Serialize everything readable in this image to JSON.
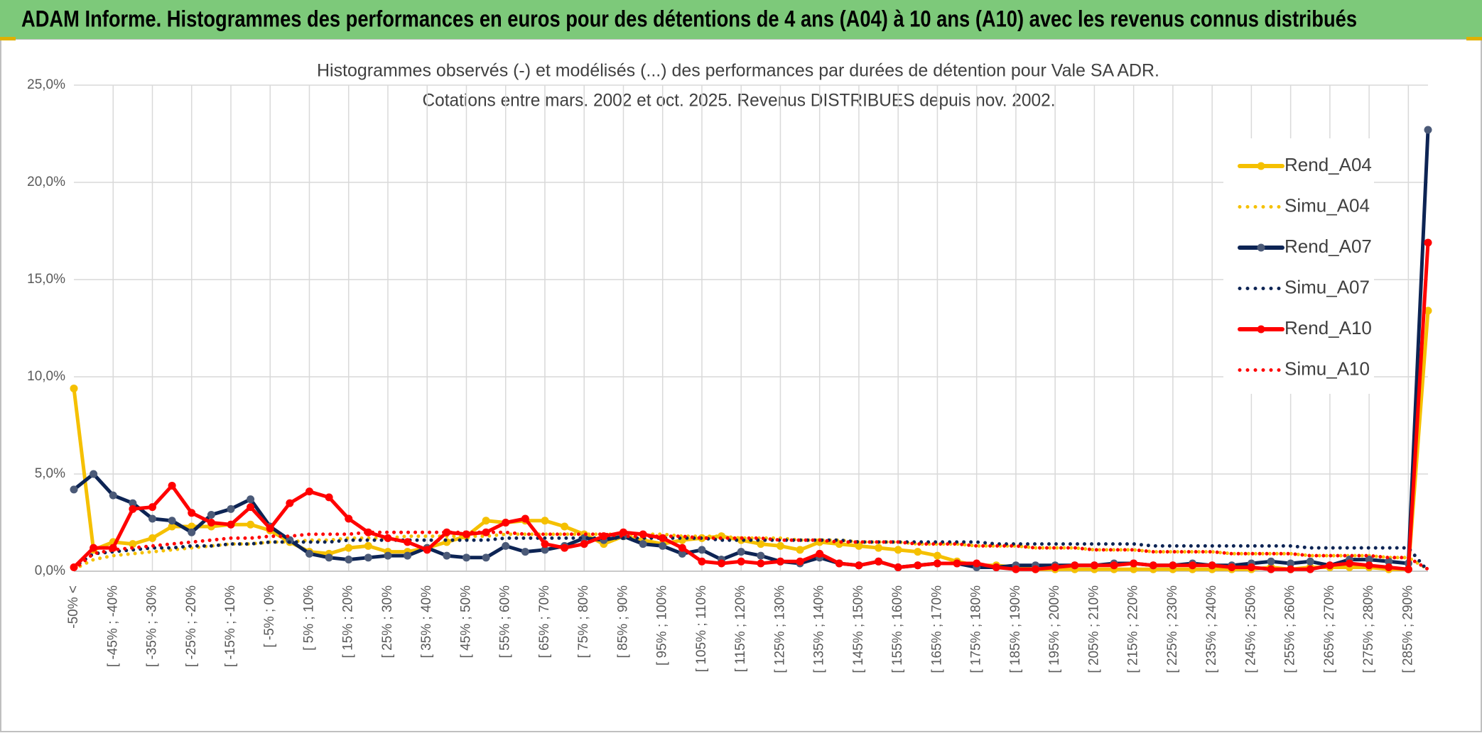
{
  "header": {
    "title": "ADAM Informe. Histogrammes des performances en euros pour des détentions de 4 ans (A04) à 10 ans (A10) avec les revenus connus distribués"
  },
  "chart_data": {
    "type": "line",
    "title": "Histogrammes observés (-) et modélisés (...) des performances par durées de détention pour Vale SA ADR.",
    "subtitle": "Cotations entre mars. 2002 et oct. 2025. Revenus DISTRIBUES depuis nov. 2002.",
    "categories": [
      "-50% <",
      null,
      "[ -45% ; -40%",
      null,
      "[ -35% ; -30%",
      null,
      "[ -25% ; -20%",
      null,
      "[ -15% ; -10%",
      null,
      "[ -5% ; 0%",
      null,
      "[ 5% ; 10%",
      null,
      "[ 15% ; 20%",
      null,
      "[ 25% ; 30%",
      null,
      "[ 35% ; 40%",
      null,
      "[ 45% ; 50%",
      null,
      "[ 55% ; 60%",
      null,
      "[ 65% ; 70%",
      null,
      "[ 75% ; 80%",
      null,
      "[ 85% ; 90%",
      null,
      "[ 95% ; 100%",
      null,
      "[ 105% ; 110%",
      null,
      "[ 115% ; 120%",
      null,
      "[ 125% ; 130%",
      null,
      "[ 135% ; 140%",
      null,
      "[ 145% ; 150%",
      null,
      "[ 155% ; 160%",
      null,
      "[ 165% ; 170%",
      null,
      "[ 175% ; 180%",
      null,
      "[ 185% ; 190%",
      null,
      "[ 195% ; 200%",
      null,
      "[ 205% ; 210%",
      null,
      "[ 215% ; 220%",
      null,
      "[ 225% ; 230%",
      null,
      "[ 235% ; 240%",
      null,
      "[ 245% ; 250%",
      null,
      "[ 255% ; 260%",
      null,
      "[ 265% ; 270%",
      null,
      "[ 275% ; 280%",
      null,
      "[ 285% ; 290%",
      null
    ],
    "series": [
      {
        "name": "Rend_A04",
        "color": "#f5c000",
        "style": "solid",
        "values": [
          9.4,
          1.1,
          1.5,
          1.4,
          1.7,
          2.3,
          2.3,
          2.3,
          2.4,
          2.4,
          2.1,
          1.5,
          1.0,
          0.9,
          1.2,
          1.3,
          1.0,
          1.0,
          1.2,
          1.5,
          1.8,
          2.6,
          2.5,
          2.6,
          2.6,
          2.3,
          1.9,
          1.4,
          1.8,
          1.6,
          1.4,
          1.6,
          1.7,
          1.8,
          1.6,
          1.4,
          1.3,
          1.1,
          1.5,
          1.4,
          1.3,
          1.2,
          1.1,
          1.0,
          0.8,
          0.5,
          0.3,
          0.3,
          0.2,
          0.1,
          0.1,
          0.1,
          0.1,
          0.1,
          0.1,
          0.1,
          0.1,
          0.1,
          0.1,
          0.1,
          0.1,
          0.2,
          0.1,
          0.2,
          0.2,
          0.2,
          0.2,
          0.1,
          0.1,
          13.4
        ]
      },
      {
        "name": "Simu_A04",
        "color": "#f5c000",
        "style": "dotted",
        "values": [
          0.1,
          0.6,
          0.8,
          0.9,
          1.0,
          1.1,
          1.2,
          1.3,
          1.4,
          1.4,
          1.5,
          1.5,
          1.6,
          1.6,
          1.7,
          1.7,
          1.7,
          1.8,
          1.8,
          1.8,
          1.8,
          1.8,
          1.9,
          1.9,
          1.9,
          1.9,
          1.9,
          1.9,
          1.9,
          1.9,
          1.9,
          1.8,
          1.8,
          1.8,
          1.7,
          1.7,
          1.7,
          1.6,
          1.6,
          1.6,
          1.5,
          1.5,
          1.5,
          1.4,
          1.4,
          1.4,
          1.3,
          1.3,
          1.3,
          1.2,
          1.2,
          1.2,
          1.1,
          1.1,
          1.1,
          1.0,
          1.0,
          1.0,
          1.0,
          0.9,
          0.9,
          0.9,
          0.9,
          0.8,
          0.8,
          0.8,
          0.8,
          0.7,
          0.7,
          0.1
        ]
      },
      {
        "name": "Rend_A07",
        "color": "#0d2454",
        "marker_color": "#4b5a78",
        "style": "solid",
        "values": [
          4.2,
          5.0,
          3.9,
          3.5,
          2.7,
          2.6,
          2.0,
          2.9,
          3.2,
          3.7,
          2.3,
          1.6,
          0.9,
          0.7,
          0.6,
          0.7,
          0.8,
          0.8,
          1.2,
          0.8,
          0.7,
          0.7,
          1.3,
          1.0,
          1.1,
          1.3,
          1.7,
          1.6,
          1.8,
          1.4,
          1.3,
          0.9,
          1.1,
          0.6,
          1.0,
          0.8,
          0.5,
          0.4,
          0.7,
          0.4,
          0.3,
          0.5,
          0.2,
          0.3,
          0.4,
          0.4,
          0.2,
          0.2,
          0.3,
          0.3,
          0.3,
          0.3,
          0.3,
          0.4,
          0.4,
          0.3,
          0.3,
          0.4,
          0.3,
          0.3,
          0.4,
          0.5,
          0.4,
          0.5,
          0.3,
          0.6,
          0.6,
          0.5,
          0.4,
          22.7
        ]
      },
      {
        "name": "Simu_A07",
        "color": "#0d2454",
        "style": "dotted",
        "values": [
          0.2,
          0.9,
          1.0,
          1.1,
          1.2,
          1.2,
          1.3,
          1.3,
          1.4,
          1.4,
          1.5,
          1.5,
          1.5,
          1.5,
          1.6,
          1.6,
          1.6,
          1.6,
          1.6,
          1.6,
          1.6,
          1.6,
          1.7,
          1.7,
          1.7,
          1.7,
          1.7,
          1.7,
          1.7,
          1.7,
          1.7,
          1.7,
          1.7,
          1.6,
          1.6,
          1.6,
          1.6,
          1.6,
          1.6,
          1.6,
          1.5,
          1.5,
          1.5,
          1.5,
          1.5,
          1.5,
          1.5,
          1.4,
          1.4,
          1.4,
          1.4,
          1.4,
          1.4,
          1.4,
          1.4,
          1.3,
          1.3,
          1.3,
          1.3,
          1.3,
          1.3,
          1.3,
          1.3,
          1.2,
          1.2,
          1.2,
          1.2,
          1.2,
          1.2,
          0.0
        ]
      },
      {
        "name": "Rend_A10",
        "color": "#ff0000",
        "style": "solid",
        "values": [
          0.2,
          1.2,
          1.2,
          3.2,
          3.3,
          4.4,
          3.0,
          2.5,
          2.4,
          3.3,
          2.2,
          3.5,
          4.1,
          3.8,
          2.7,
          2.0,
          1.7,
          1.5,
          1.1,
          2.0,
          1.9,
          2.0,
          2.5,
          2.7,
          1.4,
          1.2,
          1.4,
          1.8,
          2.0,
          1.9,
          1.7,
          1.2,
          0.5,
          0.4,
          0.5,
          0.4,
          0.5,
          0.5,
          0.9,
          0.4,
          0.3,
          0.5,
          0.2,
          0.3,
          0.4,
          0.4,
          0.4,
          0.2,
          0.1,
          0.1,
          0.2,
          0.3,
          0.3,
          0.3,
          0.4,
          0.3,
          0.3,
          0.3,
          0.3,
          0.2,
          0.2,
          0.1,
          0.1,
          0.1,
          0.3,
          0.4,
          0.3,
          0.2,
          0.1,
          16.9
        ]
      },
      {
        "name": "Simu_A10",
        "color": "#ff0000",
        "style": "dotted",
        "values": [
          0.1,
          0.9,
          1.1,
          1.2,
          1.3,
          1.4,
          1.5,
          1.6,
          1.7,
          1.7,
          1.8,
          1.8,
          1.9,
          1.9,
          1.9,
          2.0,
          2.0,
          2.0,
          2.0,
          2.0,
          2.0,
          2.0,
          2.0,
          1.9,
          1.9,
          1.9,
          1.9,
          1.9,
          1.8,
          1.8,
          1.8,
          1.8,
          1.7,
          1.7,
          1.7,
          1.7,
          1.6,
          1.6,
          1.6,
          1.5,
          1.5,
          1.5,
          1.5,
          1.4,
          1.4,
          1.4,
          1.3,
          1.3,
          1.3,
          1.2,
          1.2,
          1.2,
          1.1,
          1.1,
          1.1,
          1.0,
          1.0,
          1.0,
          1.0,
          0.9,
          0.9,
          0.9,
          0.9,
          0.8,
          0.8,
          0.8,
          0.8,
          0.7,
          0.7,
          0.1
        ]
      }
    ],
    "ylim": [
      0,
      25
    ],
    "yticks": [
      {
        "value": 0,
        "label": "0,0%"
      },
      {
        "value": 5,
        "label": "5,0%"
      },
      {
        "value": 10,
        "label": "10,0%"
      },
      {
        "value": 15,
        "label": "15,0%"
      },
      {
        "value": 20,
        "label": "20,0%"
      },
      {
        "value": 25,
        "label": "25,0%"
      }
    ],
    "grid": true,
    "legend": "right"
  }
}
